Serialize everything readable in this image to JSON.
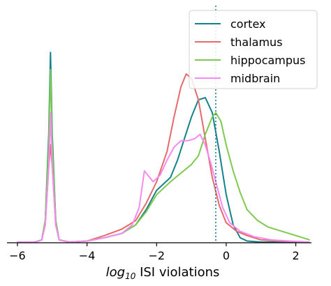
{
  "chart_data": {
    "type": "line",
    "xlabel_prefix": "log",
    "xlabel_sub": "10",
    "xlabel_suffix": " ISI violations",
    "ylabel": "",
    "xlim": [
      -6.3,
      2.45
    ],
    "ylim": [
      0,
      1.0
    ],
    "xticks": [
      -6,
      -4,
      -2,
      0,
      2
    ],
    "xtick_labels": [
      "−6",
      "−4",
      "−2",
      "0",
      "2"
    ],
    "grid": false,
    "legend_placement": "top-right",
    "vline": {
      "x": -0.3,
      "color": "#1f7a8c",
      "style": "dotted"
    },
    "series": [
      {
        "name": "cortex",
        "color": "#14828c",
        "points": [
          [
            -6.0,
            0
          ],
          [
            -5.5,
            0
          ],
          [
            -5.3,
            0.01
          ],
          [
            -5.2,
            0.1
          ],
          [
            -5.1,
            0.5
          ],
          [
            -5.05,
            0.88
          ],
          [
            -5.0,
            0.5
          ],
          [
            -4.9,
            0.1
          ],
          [
            -4.8,
            0.01
          ],
          [
            -4.5,
            0
          ],
          [
            -4.0,
            0.005
          ],
          [
            -3.5,
            0.02
          ],
          [
            -3.0,
            0.04
          ],
          [
            -2.6,
            0.08
          ],
          [
            -2.3,
            0.15
          ],
          [
            -2.0,
            0.24
          ],
          [
            -1.8,
            0.27
          ],
          [
            -1.6,
            0.3
          ],
          [
            -1.4,
            0.38
          ],
          [
            -1.2,
            0.48
          ],
          [
            -1.0,
            0.58
          ],
          [
            -0.8,
            0.66
          ],
          [
            -0.6,
            0.67
          ],
          [
            -0.4,
            0.6
          ],
          [
            -0.2,
            0.42
          ],
          [
            0,
            0.22
          ],
          [
            0.2,
            0.08
          ],
          [
            0.4,
            0.02
          ],
          [
            0.6,
            0.005
          ],
          [
            1.0,
            0
          ],
          [
            2.4,
            0
          ]
        ]
      },
      {
        "name": "thalamus",
        "color": "#e8696b",
        "points": [
          [
            -6.0,
            0
          ],
          [
            -5.5,
            0
          ],
          [
            -5.3,
            0.01
          ],
          [
            -5.2,
            0.08
          ],
          [
            -5.1,
            0.35
          ],
          [
            -5.05,
            0.45
          ],
          [
            -5.0,
            0.35
          ],
          [
            -4.9,
            0.08
          ],
          [
            -4.8,
            0.01
          ],
          [
            -4.5,
            0
          ],
          [
            -4.0,
            0.005
          ],
          [
            -3.5,
            0.03
          ],
          [
            -3.0,
            0.06
          ],
          [
            -2.6,
            0.1
          ],
          [
            -2.3,
            0.18
          ],
          [
            -2.0,
            0.28
          ],
          [
            -1.7,
            0.42
          ],
          [
            -1.5,
            0.58
          ],
          [
            -1.3,
            0.72
          ],
          [
            -1.15,
            0.78
          ],
          [
            -1.0,
            0.76
          ],
          [
            -0.8,
            0.66
          ],
          [
            -0.6,
            0.48
          ],
          [
            -0.4,
            0.3
          ],
          [
            -0.2,
            0.17
          ],
          [
            0,
            0.09
          ],
          [
            0.3,
            0.05
          ],
          [
            0.6,
            0.03
          ],
          [
            1.0,
            0.01
          ],
          [
            1.5,
            0.005
          ],
          [
            2.4,
            0
          ]
        ]
      },
      {
        "name": "hippocampus",
        "color": "#7ec950",
        "points": [
          [
            -6.0,
            0
          ],
          [
            -5.5,
            0
          ],
          [
            -5.3,
            0.01
          ],
          [
            -5.2,
            0.1
          ],
          [
            -5.1,
            0.45
          ],
          [
            -5.05,
            0.8
          ],
          [
            -5.0,
            0.45
          ],
          [
            -4.9,
            0.1
          ],
          [
            -4.8,
            0.01
          ],
          [
            -4.5,
            0
          ],
          [
            -4.0,
            0.005
          ],
          [
            -3.5,
            0.02
          ],
          [
            -3.0,
            0.04
          ],
          [
            -2.6,
            0.08
          ],
          [
            -2.3,
            0.14
          ],
          [
            -2.0,
            0.22
          ],
          [
            -1.8,
            0.25
          ],
          [
            -1.6,
            0.28
          ],
          [
            -1.3,
            0.32
          ],
          [
            -1.0,
            0.36
          ],
          [
            -0.8,
            0.4
          ],
          [
            -0.6,
            0.5
          ],
          [
            -0.4,
            0.58
          ],
          [
            -0.3,
            0.6
          ],
          [
            -0.15,
            0.56
          ],
          [
            0,
            0.45
          ],
          [
            0.2,
            0.33
          ],
          [
            0.4,
            0.23
          ],
          [
            0.6,
            0.15
          ],
          [
            0.9,
            0.1
          ],
          [
            1.2,
            0.07
          ],
          [
            1.6,
            0.05
          ],
          [
            2.0,
            0.03
          ],
          [
            2.4,
            0.01
          ]
        ]
      },
      {
        "name": "midbrain",
        "color": "#f58af0",
        "points": [
          [
            -6.0,
            0
          ],
          [
            -5.5,
            0
          ],
          [
            -5.3,
            0.01
          ],
          [
            -5.2,
            0.08
          ],
          [
            -5.1,
            0.35
          ],
          [
            -5.05,
            0.6
          ],
          [
            -5.0,
            0.35
          ],
          [
            -4.9,
            0.08
          ],
          [
            -4.8,
            0.01
          ],
          [
            -4.5,
            0
          ],
          [
            -4.0,
            0.005
          ],
          [
            -3.5,
            0.02
          ],
          [
            -3.0,
            0.04
          ],
          [
            -2.7,
            0.08
          ],
          [
            -2.5,
            0.16
          ],
          [
            -2.35,
            0.33
          ],
          [
            -2.25,
            0.31
          ],
          [
            -2.1,
            0.28
          ],
          [
            -1.9,
            0.31
          ],
          [
            -1.7,
            0.38
          ],
          [
            -1.5,
            0.44
          ],
          [
            -1.3,
            0.47
          ],
          [
            -1.1,
            0.47
          ],
          [
            -0.9,
            0.48
          ],
          [
            -0.75,
            0.5
          ],
          [
            -0.6,
            0.45
          ],
          [
            -0.45,
            0.37
          ],
          [
            -0.3,
            0.28
          ],
          [
            -0.1,
            0.16
          ],
          [
            0.1,
            0.09
          ],
          [
            0.4,
            0.05
          ],
          [
            0.8,
            0.025
          ],
          [
            1.3,
            0.01
          ],
          [
            1.8,
            0.005
          ],
          [
            2.4,
            0
          ]
        ]
      }
    ]
  }
}
